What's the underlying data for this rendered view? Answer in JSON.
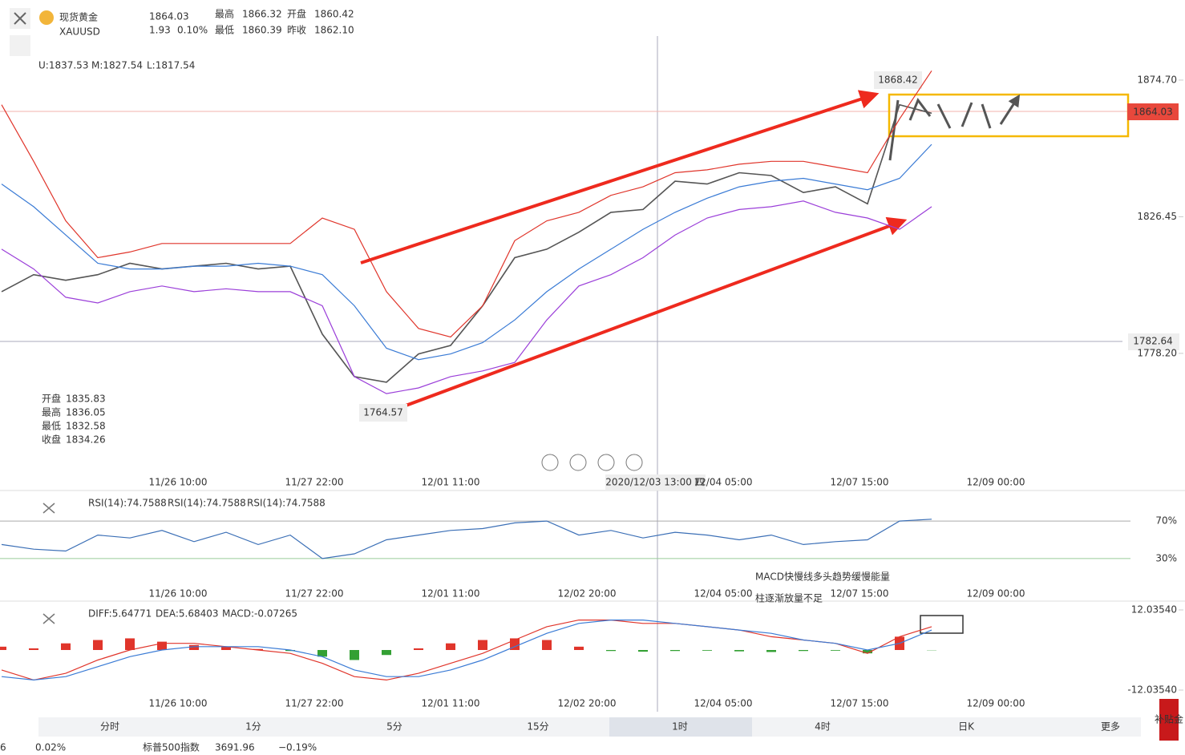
{
  "header": {
    "name": "现货黄金",
    "symbol": "XAUUSD",
    "price": "1864.03",
    "change": "1.93",
    "change_pct": "0.10%",
    "stats": [
      {
        "label": "最高",
        "value": "1866.32"
      },
      {
        "label": "最低",
        "value": "1860.39"
      },
      {
        "label": "开盘",
        "value": "1860.42"
      },
      {
        "label": "昨收",
        "value": "1862.10"
      }
    ]
  },
  "boll_labels": [
    "U:1837.53",
    "M:1827.54",
    "L:1817.54"
  ],
  "ohlc_box": [
    [
      "开盘",
      "1835.83"
    ],
    [
      "最高",
      "1836.05"
    ],
    [
      "最低",
      "1832.58"
    ],
    [
      "收盘",
      "1834.26"
    ]
  ],
  "price_marks": {
    "high": "1868.42",
    "low": "1764.57",
    "current": "1864.03",
    "crosshair": "1782.64"
  },
  "crosshair_time": "2020/12/03 13:00 四",
  "time_labels": [
    "11/26 10:00",
    "11/27 22:00",
    "12/01 11:00",
    "12/02 20:00",
    "12/04 05:00",
    "12/07 15:00",
    "12/09 00:00"
  ],
  "rsi_labels": [
    "RSI(14):74.7588",
    "RSI(14):74.7588",
    "RSI(14):74.7588"
  ],
  "macd_labels": [
    "DIFF:5.64771",
    "DEA:5.68403",
    "MACD:-0.07265"
  ],
  "annotation": [
    "MACD快慢线多头趋势缓慢能量",
    "柱逐渐放量不足"
  ],
  "tabs": [
    "分时",
    "1分",
    "5分",
    "15分",
    "1时",
    "4时",
    "日K",
    "更多"
  ],
  "ticker": [
    "6",
    "0.02%",
    "标普500指数",
    "3691.96",
    "−0.19%"
  ],
  "side_badge": "补贴金",
  "chart_data": [
    {
      "type": "line",
      "ylim": [
        1736,
        1886
      ],
      "yticks": [
        {
          "value": 1874.7,
          "label": "1874.70"
        },
        1826.45,
        {
          "value": 1778.2,
          "label": "1778.20"
        }
      ],
      "series": [
        {
          "name": "Close",
          "color": "#555",
          "values": [
            1800,
            1806,
            1804,
            1806,
            1810,
            1808,
            1809,
            1810,
            1808,
            1809,
            1785,
            1770,
            1768,
            1778,
            1781,
            1795,
            1812,
            1815,
            1821,
            1828,
            1829,
            1839,
            1838,
            1842,
            1841,
            1835,
            1837,
            1831,
            1866,
            1863
          ]
        },
        {
          "name": "U",
          "color": "#e0352b",
          "values": [
            1866,
            1846,
            1825,
            1812,
            1814,
            1817,
            1817,
            1817,
            1817,
            1817,
            1826,
            1822,
            1800,
            1787,
            1784,
            1795,
            1818,
            1825,
            1828,
            1834,
            1837,
            1842,
            1843,
            1845,
            1846,
            1846,
            1844,
            1842,
            1861,
            1878
          ]
        },
        {
          "name": "M",
          "color": "#3a7bd5",
          "values": [
            1838,
            1830,
            1820,
            1810,
            1808,
            1808,
            1809,
            1809,
            1810,
            1809,
            1806,
            1795,
            1780,
            1776,
            1778,
            1782,
            1790,
            1800,
            1808,
            1815,
            1822,
            1828,
            1833,
            1837,
            1839,
            1840,
            1838,
            1836,
            1840,
            1852
          ]
        },
        {
          "name": "L",
          "color": "#9b3fd9",
          "values": [
            1815,
            1808,
            1798,
            1796,
            1800,
            1802,
            1800,
            1801,
            1800,
            1800,
            1795,
            1770,
            1764,
            1766,
            1770,
            1772,
            1775,
            1790,
            1802,
            1806,
            1812,
            1820,
            1826,
            1829,
            1830,
            1832,
            1828,
            1826,
            1822,
            1830
          ]
        }
      ]
    },
    {
      "type": "line",
      "ylim": [
        0,
        100
      ],
      "yticks": [
        {
          "value": 70,
          "label": "70%"
        },
        {
          "value": 30,
          "label": "30%"
        }
      ],
      "series": [
        {
          "name": "RSI",
          "color": "#3b6fb6",
          "values": [
            45,
            40,
            38,
            55,
            52,
            60,
            48,
            58,
            45,
            55,
            30,
            35,
            50,
            55,
            60,
            62,
            68,
            70,
            55,
            60,
            52,
            58,
            55,
            50,
            55,
            45,
            48,
            50,
            70,
            72
          ]
        }
      ]
    },
    {
      "type": "macd",
      "ylim": [
        -12.0354,
        12.0354
      ],
      "yticks": [
        {
          "value": 12.0354,
          "label": "12.03540"
        },
        {
          "value": -12.0354,
          "label": "-12.03540"
        }
      ],
      "up_color": "#e0352b",
      "down_color": "#34a034",
      "histogram": [
        1,
        0.5,
        2,
        3,
        3.5,
        2.5,
        1.5,
        1,
        0.3,
        -0.3,
        -2,
        -3,
        -1.5,
        0.5,
        2,
        3,
        3.5,
        3,
        1,
        -0.3,
        -0.5,
        -0.3,
        -0.2,
        -0.4,
        -0.6,
        -0.3,
        -0.2,
        -1,
        4,
        -0.07265
      ],
      "series": [
        {
          "name": "DIFF",
          "color": "#e0352b",
          "values": [
            -6,
            -9,
            -7,
            -3,
            0,
            2,
            2,
            1,
            0,
            -1,
            -4,
            -8,
            -9,
            -7,
            -4,
            -1,
            3,
            7,
            9,
            9,
            8,
            8,
            7,
            6,
            4,
            3,
            2,
            -1,
            4,
            7
          ]
        },
        {
          "name": "DEA",
          "color": "#3a7bd5",
          "values": [
            -8,
            -9,
            -8,
            -5,
            -2,
            0,
            1,
            1,
            1,
            0,
            -2,
            -6,
            -8,
            -8,
            -6,
            -3,
            1,
            5,
            8,
            9,
            9,
            8,
            7,
            6,
            5,
            3,
            2,
            0,
            2,
            6
          ]
        }
      ]
    }
  ]
}
